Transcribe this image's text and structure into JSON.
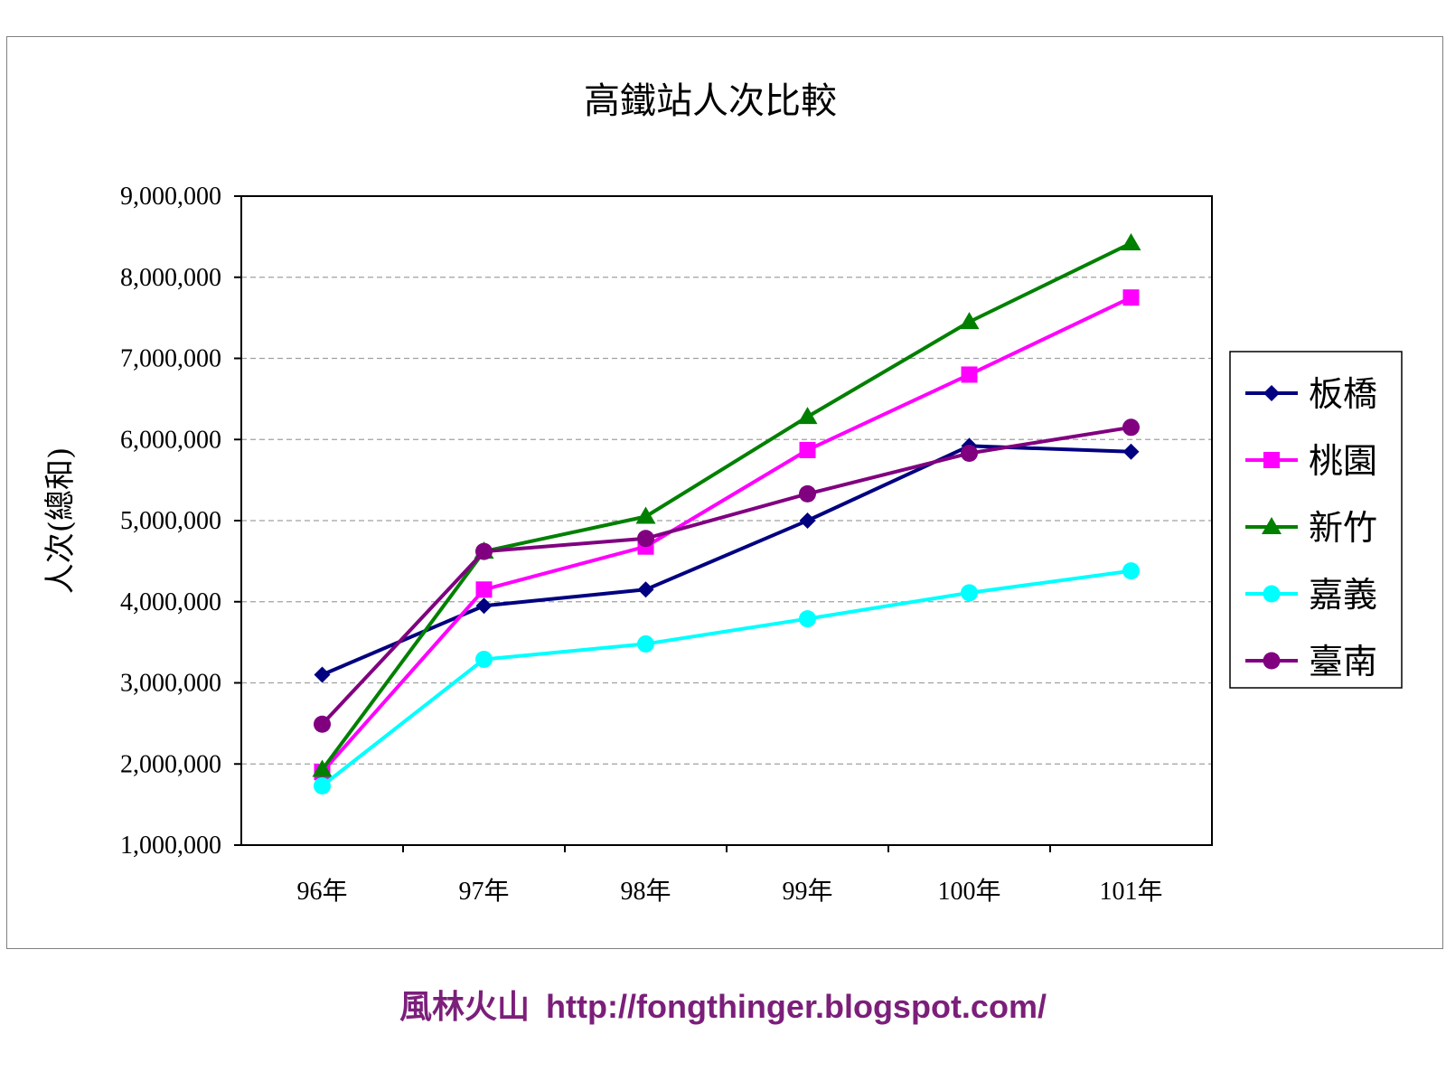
{
  "chart_data": {
    "type": "line",
    "title": "高鐵站人次比較",
    "xlabel": "",
    "ylabel": "人次(總和)",
    "categories": [
      "96年",
      "97年",
      "98年",
      "99年",
      "100年",
      "101年"
    ],
    "ylim": [
      1000000,
      9000000
    ],
    "yticks": [
      "1,000,000",
      "2,000,000",
      "3,000,000",
      "4,000,000",
      "5,000,000",
      "6,000,000",
      "7,000,000",
      "8,000,000",
      "9,000,000"
    ],
    "ytick_values": [
      1000000,
      2000000,
      3000000,
      4000000,
      5000000,
      6000000,
      7000000,
      8000000,
      9000000
    ],
    "grid": "horizontal dashed",
    "legend": "right",
    "series": [
      {
        "name": "板橋",
        "color": "#000080",
        "marker": "diamond",
        "values": [
          3100000,
          3950000,
          4150000,
          5000000,
          5920000,
          5850000
        ]
      },
      {
        "name": "桃園",
        "color": "#ff00ff",
        "marker": "square",
        "values": [
          1900000,
          4150000,
          4680000,
          5870000,
          6800000,
          7750000
        ]
      },
      {
        "name": "新竹",
        "color": "#008000",
        "marker": "triangle",
        "values": [
          1930000,
          4620000,
          5050000,
          6280000,
          7450000,
          8420000
        ]
      },
      {
        "name": "嘉義",
        "color": "#00ffff",
        "marker": "circle",
        "values": [
          1730000,
          3290000,
          3480000,
          3790000,
          4110000,
          4380000
        ]
      },
      {
        "name": "臺南",
        "color": "#800080",
        "marker": "circle",
        "values": [
          2490000,
          4620000,
          4780000,
          5330000,
          5830000,
          6150000
        ]
      }
    ]
  },
  "footer": {
    "name": "風林火山",
    "url": "http://fongthinger.blogspot.com/"
  }
}
